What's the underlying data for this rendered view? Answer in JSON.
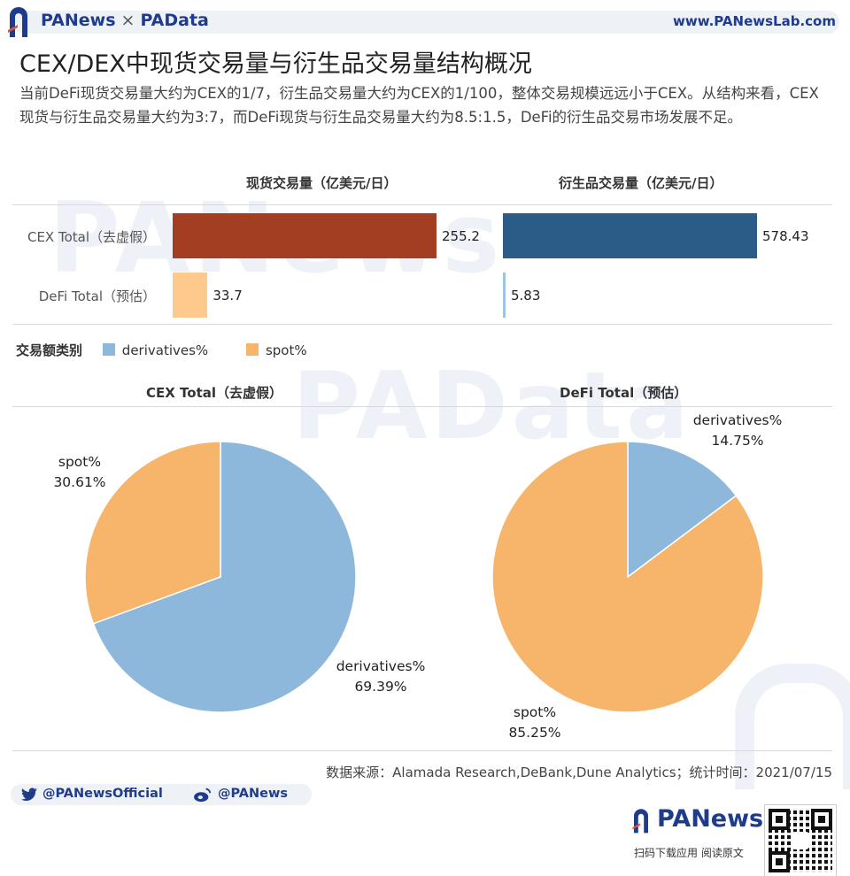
{
  "header": {
    "brand_left": "PANews",
    "brand_sep": "×",
    "brand_right": "PAData",
    "url": "www.PANewsLab.com"
  },
  "title": "CEX/DEX中现货交易量与衍生品交易量结构概况",
  "description": "当前DeFi现货交易量大约为CEX的1/7，衍生品交易量大约为CEX的1/100，整体交易规模远远小于CEX。从结构来看，CEX现货与衍生品交易量大约为3:7，而DeFi现货与衍生品交易量大约为8.5:1.5，DeFi的衍生品交易市场发展不足。",
  "watermarks": [
    "PANews",
    "PAData"
  ],
  "colors": {
    "cex_spot": "#a33e23",
    "defi_spot": "#fdc98c",
    "cex_deriv": "#2b5b87",
    "defi_deriv": "#9dc4e0",
    "legend_derivatives": "#8db8dc",
    "legend_spot": "#f6b56a",
    "brand": "#1f3b8c"
  },
  "chart_data": [
    {
      "type": "bar",
      "title": "现货交易量（亿美元/日）",
      "categories": [
        "CEX Total（去虚假）",
        "DeFi Total（预估）"
      ],
      "values": [
        255.2,
        33.7
      ],
      "value_labels": [
        "255.2",
        "33.7"
      ]
    },
    {
      "type": "bar",
      "title": "衍生品交易量（亿美元/日）",
      "categories": [
        "CEX Total（去虚假）",
        "DeFi Total（预估）"
      ],
      "values": [
        578.43,
        5.83
      ],
      "value_labels": [
        "578.43",
        "5.83"
      ]
    },
    {
      "type": "pie",
      "title": "CEX Total（去虚假）",
      "labels": [
        "derivatives%",
        "spot%"
      ],
      "values": [
        69.39,
        30.61
      ],
      "value_labels": [
        "69.39%",
        "30.61%"
      ]
    },
    {
      "type": "pie",
      "title": "DeFi Total（预估）",
      "labels": [
        "derivatives%",
        "spot%"
      ],
      "values": [
        14.75,
        85.25
      ],
      "value_labels": [
        "14.75%",
        "85.25%"
      ]
    }
  ],
  "legend": {
    "title": "交易额类别",
    "items": [
      {
        "label": "derivatives%",
        "color": "#8db8dc"
      },
      {
        "label": "spot%",
        "color": "#f6b56a"
      }
    ]
  },
  "source": "数据来源：Alamada Research,DeBank,Dune Analytics；统计时间：2021/07/15",
  "social": {
    "twitter": "@PANewsOfficial",
    "weibo": "@PANews"
  },
  "footer": {
    "logo": "PANews",
    "tagline": "扫码下载应用  阅读原文"
  }
}
